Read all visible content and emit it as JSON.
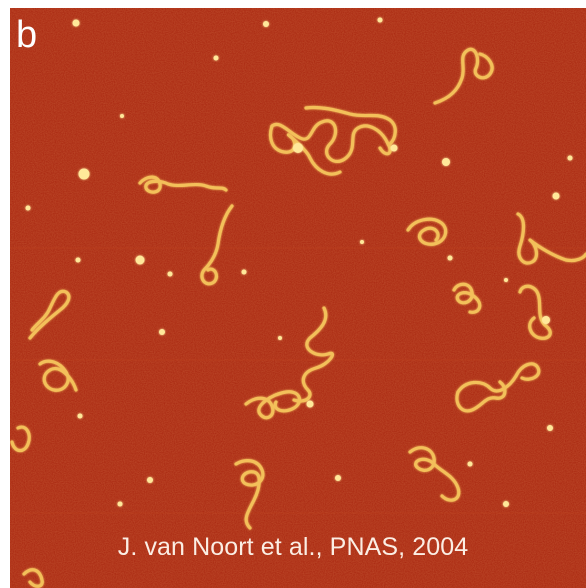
{
  "image": {
    "panel_label": "b",
    "credit": "J. van Noort et al., PNAS, 2004",
    "colors": {
      "background": "#a8240e",
      "strand": "#f3c05a",
      "strand_core": "#ffe89a",
      "frame": "#ffffff"
    }
  }
}
